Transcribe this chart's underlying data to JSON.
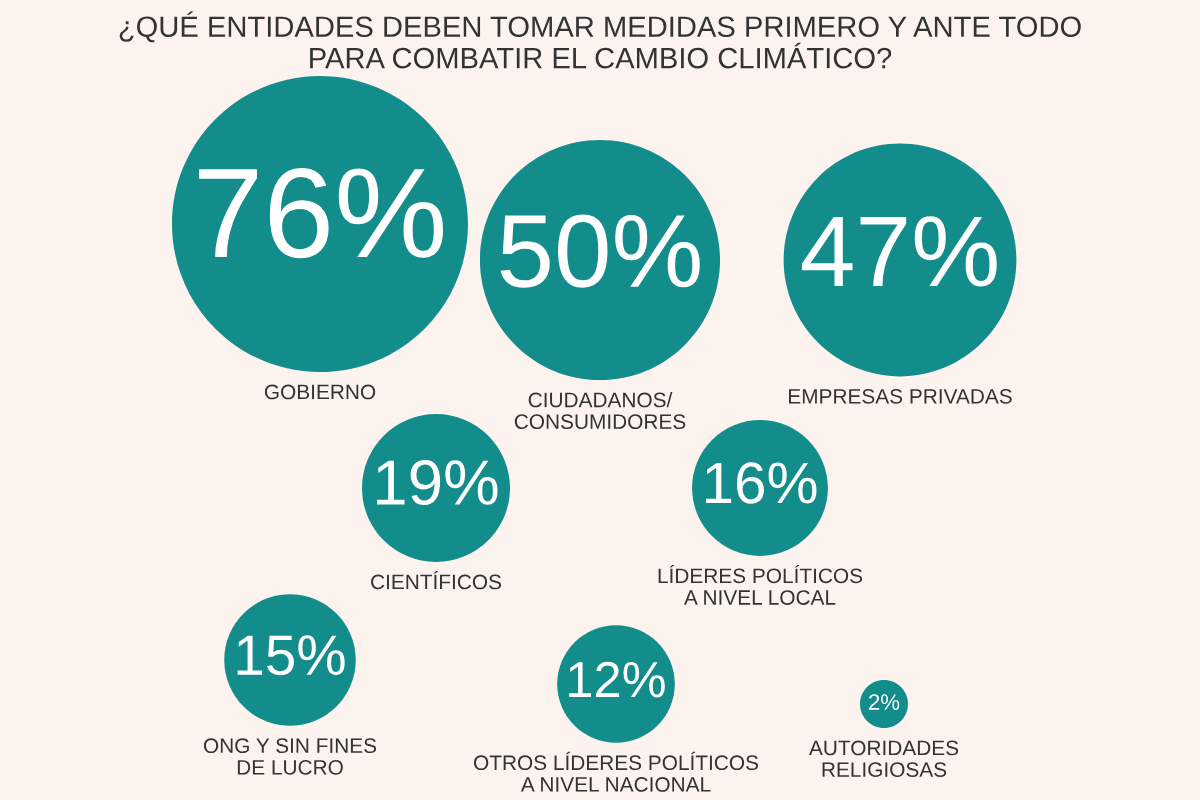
{
  "chart_data": {
    "type": "other",
    "title": "¿QUÉ ENTIDADES DEBEN TOMAR MEDIDAS PRIMERO Y ANTE TODO\nPARA COMBATIR EL CAMBIO CLIMÁTICO?",
    "categories": [
      "GOBIERNO",
      "CIUDADANOS/\nCONSUMIDORES",
      "EMPRESAS PRIVADAS",
      "CIENTÍFICOS",
      "LÍDERES POLÍTICOS\nA NIVEL LOCAL",
      "ONG Y SIN FINES\nDE LUCRO",
      "OTROS LÍDERES POLÍTICOS\nA NIVEL NACIONAL",
      "AUTORIDADES\nRELIGIOSAS"
    ],
    "values": [
      76,
      50,
      47,
      19,
      16,
      15,
      12,
      2
    ],
    "value_labels": [
      "76%",
      "50%",
      "47%",
      "19%",
      "16%",
      "15%",
      "12%",
      "2%"
    ],
    "color": "#138d8c"
  }
}
